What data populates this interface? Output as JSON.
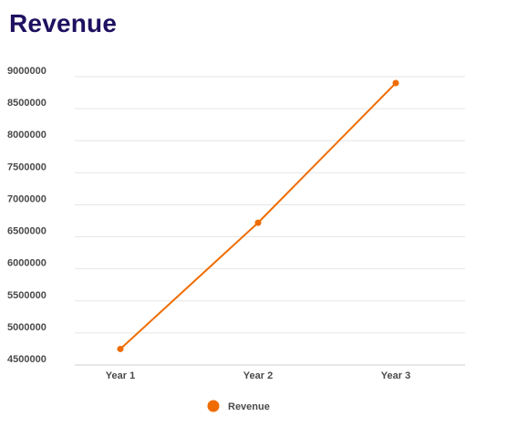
{
  "chart_data": {
    "type": "line",
    "title": "Revenue",
    "categories": [
      "Year 1",
      "Year 2",
      "Year 3"
    ],
    "series": [
      {
        "name": "Revenue",
        "values": [
          4750000,
          6720000,
          8900000
        ],
        "color": "#ef6c00"
      }
    ],
    "ylim": [
      4500000,
      9000000
    ],
    "yticks": [
      "4500000",
      "5000000",
      "5500000",
      "6000000",
      "6500000",
      "7000000",
      "7500000",
      "8000000",
      "8500000",
      "9000000"
    ],
    "grid": true,
    "legend": "bottom-center",
    "xlabel": "",
    "ylabel": ""
  }
}
